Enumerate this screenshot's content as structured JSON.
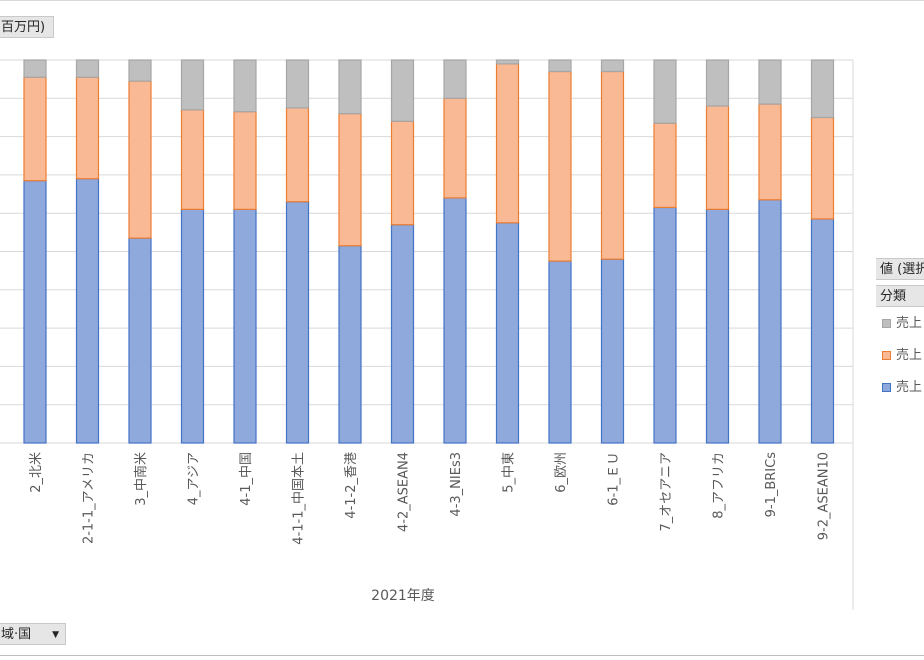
{
  "unit_field": {
    "label": "百万円)"
  },
  "region_field": {
    "label": "域·国",
    "dropdown_icon": "triangle-down-icon"
  },
  "legend": {
    "title": "値 (選択",
    "subtitle": "分類",
    "items": [
      {
        "label": "売上",
        "color": "#bfbfbf",
        "border": "#a6a6a6"
      },
      {
        "label": "売上",
        "color": "#f8b994",
        "border": "#ed7d31"
      },
      {
        "label": "売上",
        "color": "#8fa9dd",
        "border": "#4472c4"
      }
    ]
  },
  "chart_data": {
    "type": "bar",
    "stacked": true,
    "percent_stacked": true,
    "xlabel": "2021年度",
    "ylim": [
      0,
      100
    ],
    "grid": true,
    "categories": [
      "2_北米",
      "2-1-1_アメリカ",
      "3_中南米",
      "4_アジア",
      "4-1_中国",
      "4-1-1_中国本土",
      "4-1-2_香港",
      "4-2_ASEAN4",
      "4-3_NIEs3",
      "5_中東",
      "6_欧州",
      "6-1_ＥＵ",
      "7_オセアニア",
      "8_アフリカ",
      "9-1_BRICs",
      "9-2_ASEAN10"
    ],
    "series": [
      {
        "color": "#8fa9dd",
        "border": "#4472c4",
        "values": [
          68.5,
          69,
          53.5,
          61,
          61,
          63,
          51.5,
          57,
          64,
          57.5,
          47.5,
          48,
          61.5,
          61,
          63.5,
          58.5
        ]
      },
      {
        "color": "#f8b994",
        "border": "#ed7d31",
        "values": [
          27,
          26.5,
          41,
          26,
          25.5,
          24.5,
          34.5,
          27,
          26,
          41.5,
          49.5,
          49,
          22,
          27,
          25,
          26.5
        ]
      },
      {
        "color": "#bfbfbf",
        "border": "#a6a6a6",
        "values": [
          4.5,
          4.5,
          5.5,
          13,
          13.5,
          12.5,
          14,
          16,
          10,
          1,
          3,
          3,
          16.5,
          12,
          11.5,
          15
        ]
      }
    ]
  }
}
